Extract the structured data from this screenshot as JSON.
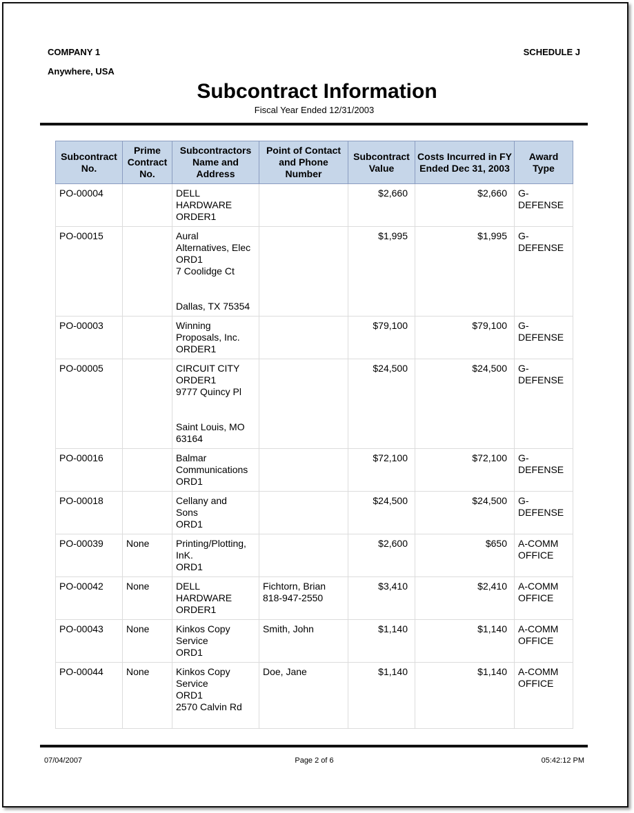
{
  "header": {
    "company": "COMPANY 1",
    "location": "Anywhere, USA",
    "schedule": "SCHEDULE J",
    "title": "Subcontract Information",
    "subtitle": "Fiscal Year Ended 12/31/2003"
  },
  "table": {
    "columns": [
      "Subcontract No.",
      "Prime Contract No.",
      "Subcontractors Name and Address",
      "Point of Contact and Phone Number",
      "Subcontract Value",
      "Costs Incurred in FY Ended Dec 31, 2003",
      "Award Type"
    ],
    "rows": [
      {
        "no": "PO-00004",
        "prime": "",
        "name": [
          "DELL",
          "HARDWARE",
          "ORDER1"
        ],
        "contact": [],
        "value": "$2,660",
        "costs": "$2,660",
        "award": [
          "G-",
          "DEFENSE"
        ]
      },
      {
        "no": "PO-00015",
        "prime": "",
        "name": [
          "Aural",
          "Alternatives, Elec",
          "ORD1",
          "7 Coolidge Ct",
          "",
          "",
          "Dallas, TX 75354"
        ],
        "contact": [],
        "value": "$1,995",
        "costs": "$1,995",
        "award": [
          "G-",
          "DEFENSE"
        ]
      },
      {
        "no": "PO-00003",
        "prime": "",
        "name": [
          "Winning",
          "Proposals, Inc.",
          "ORDER1"
        ],
        "contact": [],
        "value": "$79,100",
        "costs": "$79,100",
        "award": [
          "G-",
          "DEFENSE"
        ]
      },
      {
        "no": "PO-00005",
        "prime": "",
        "name": [
          "CIRCUIT CITY",
          "ORDER1",
          "9777 Quincy Pl",
          "",
          "",
          "Saint Louis, MO",
          "63164"
        ],
        "contact": [],
        "value": "$24,500",
        "costs": "$24,500",
        "award": [
          "G-",
          "DEFENSE"
        ]
      },
      {
        "no": "PO-00016",
        "prime": "",
        "name": [
          "Balmar",
          "Communications",
          "ORD1"
        ],
        "contact": [],
        "value": "$72,100",
        "costs": "$72,100",
        "award": [
          "G-",
          "DEFENSE"
        ]
      },
      {
        "no": "PO-00018",
        "prime": "",
        "name": [
          "Cellany and",
          "Sons",
          "ORD1"
        ],
        "contact": [],
        "value": "$24,500",
        "costs": "$24,500",
        "award": [
          "G-",
          "DEFENSE"
        ]
      },
      {
        "no": "PO-00039",
        "prime": "None",
        "name": [
          "Printing/Plotting,",
          "InK.",
          "ORD1"
        ],
        "contact": [],
        "value": "$2,600",
        "costs": "$650",
        "award": [
          "A-COMM",
          "OFFICE"
        ]
      },
      {
        "no": "PO-00042",
        "prime": "None",
        "name": [
          "DELL",
          "HARDWARE",
          "ORDER1"
        ],
        "contact": [
          "Fichtorn, Brian",
          "818-947-2550"
        ],
        "value": "$3,410",
        "costs": "$2,410",
        "award": [
          "A-COMM",
          "OFFICE"
        ]
      },
      {
        "no": "PO-00043",
        "prime": "None",
        "name": [
          "Kinkos Copy",
          "Service",
          "ORD1"
        ],
        "contact": [
          "Smith, John"
        ],
        "value": "$1,140",
        "costs": "$1,140",
        "award": [
          "A-COMM",
          "OFFICE"
        ]
      },
      {
        "no": "PO-00044",
        "prime": "None",
        "name": [
          "Kinkos Copy",
          "Service",
          "ORD1",
          "2570 Calvin Rd"
        ],
        "contact": [
          "Doe, Jane"
        ],
        "value": "$1,140",
        "costs": "$1,140",
        "award": [
          "A-COMM",
          "OFFICE"
        ]
      }
    ]
  },
  "footer": {
    "date": "07/04/2007",
    "page": "Page 2 of 6",
    "time": "05:42:12 PM"
  },
  "colors": {
    "header_bg": "#c6d6e9",
    "header_border": "#8a9cc0"
  }
}
